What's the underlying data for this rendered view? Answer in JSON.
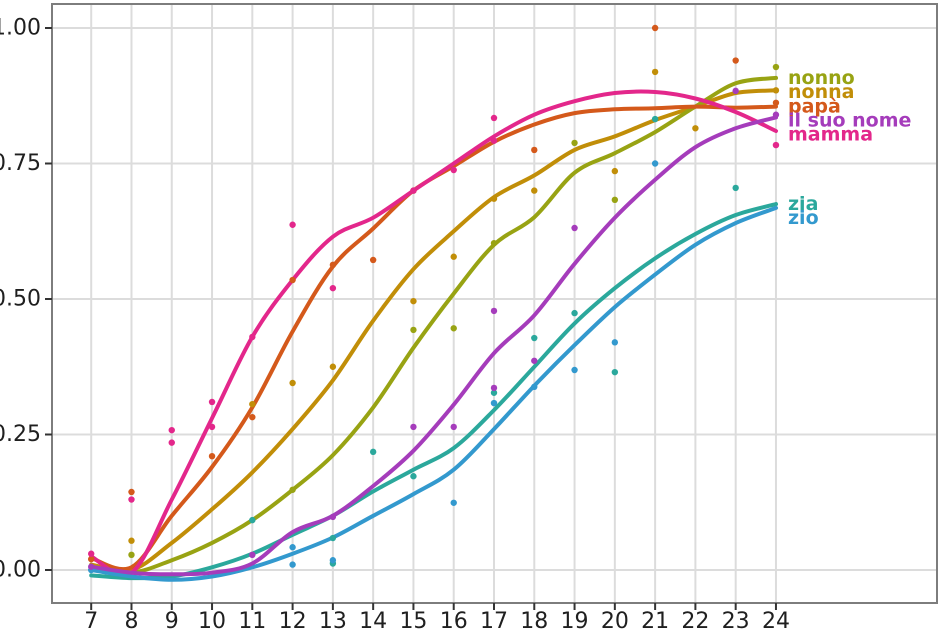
{
  "chart_data": {
    "type": "line+scatter",
    "title": "",
    "xlabel": "",
    "ylabel": "",
    "x_ticks": [
      7,
      8,
      9,
      10,
      11,
      12,
      13,
      14,
      15,
      16,
      17,
      18,
      19,
      20,
      21,
      22,
      23,
      24
    ],
    "y_ticks": [
      {
        "value": 0.0,
        "label": "0.00"
      },
      {
        "value": 0.25,
        "label": "0.25"
      },
      {
        "value": 0.5,
        "label": "0.50"
      },
      {
        "value": 0.75,
        "label": "0.75"
      },
      {
        "value": 1.0,
        "label": "1.00"
      }
    ],
    "xlim": [
      6.0,
      28.0
    ],
    "ylim": [
      -0.06,
      1.045
    ],
    "grid": true,
    "legend_position": "right-direct-labels",
    "ages": [
      7,
      8,
      9,
      10,
      11,
      12,
      13,
      14,
      15,
      16,
      17,
      18,
      19,
      20,
      21,
      22,
      23,
      24
    ],
    "series": [
      {
        "label": "nonna",
        "color": "#C18E08",
        "values": [
          0.01,
          0.0,
          0.05,
          0.112,
          0.18,
          0.26,
          0.35,
          0.46,
          0.555,
          0.625,
          0.688,
          0.728,
          0.775,
          0.8,
          0.83,
          0.855,
          0.88,
          0.885
        ],
        "points": [
          [
            8,
            0.054
          ],
          [
            11,
            0.306
          ],
          [
            12,
            0.345
          ],
          [
            13,
            0.375
          ],
          [
            15,
            0.496
          ],
          [
            16,
            0.578
          ],
          [
            17,
            0.685
          ],
          [
            18,
            0.7
          ],
          [
            20,
            0.736
          ],
          [
            21,
            0.919
          ],
          [
            22,
            0.815
          ],
          [
            24,
            0.885
          ]
        ]
      },
      {
        "label": "nonno",
        "color": "#98A313",
        "values": [
          0.005,
          -0.005,
          0.018,
          0.05,
          0.092,
          0.148,
          0.212,
          0.3,
          0.41,
          0.51,
          0.6,
          0.651,
          0.733,
          0.769,
          0.808,
          0.855,
          0.898,
          0.908
        ],
        "points": [
          [
            8,
            0.028
          ],
          [
            12,
            0.148
          ],
          [
            15,
            0.443
          ],
          [
            16,
            0.446
          ],
          [
            17,
            0.603
          ],
          [
            19,
            0.788
          ],
          [
            20,
            0.683
          ],
          [
            24,
            0.928
          ]
        ]
      },
      {
        "label": "papà",
        "color": "#D4591B",
        "values": [
          0.022,
          0.005,
          0.1,
          0.19,
          0.3,
          0.44,
          0.56,
          0.63,
          0.7,
          0.745,
          0.79,
          0.822,
          0.843,
          0.85,
          0.852,
          0.855,
          0.853,
          0.855
        ],
        "points": [
          [
            7,
            0.02
          ],
          [
            8,
            0.144
          ],
          [
            10,
            0.21
          ],
          [
            11,
            0.282
          ],
          [
            12,
            0.535
          ],
          [
            13,
            0.563
          ],
          [
            14,
            0.572
          ],
          [
            15,
            0.7
          ],
          [
            18,
            0.775
          ],
          [
            21,
            1.0
          ],
          [
            23,
            0.94
          ],
          [
            24,
            0.862
          ]
        ]
      },
      {
        "label": "mamma",
        "color": "#E3278B",
        "values": [
          0.025,
          -0.005,
          0.13,
          0.28,
          0.43,
          0.535,
          0.615,
          0.65,
          0.7,
          0.75,
          0.8,
          0.84,
          0.865,
          0.88,
          0.882,
          0.87,
          0.845,
          0.81
        ],
        "points": [
          [
            7,
            0.03
          ],
          [
            8,
            0.13
          ],
          [
            9,
            0.258
          ],
          [
            9,
            0.235
          ],
          [
            10,
            0.264
          ],
          [
            10,
            0.31
          ],
          [
            11,
            0.43
          ],
          [
            12,
            0.637
          ],
          [
            13,
            0.52
          ],
          [
            15,
            0.7
          ],
          [
            16,
            0.738
          ],
          [
            17,
            0.792
          ],
          [
            17,
            0.834
          ],
          [
            24,
            0.784
          ]
        ]
      },
      {
        "label": "zia",
        "color": "#2BA89C",
        "values": [
          -0.01,
          -0.015,
          -0.012,
          0.005,
          0.03,
          0.065,
          0.1,
          0.145,
          0.185,
          0.225,
          0.295,
          0.375,
          0.455,
          0.52,
          0.575,
          0.62,
          0.655,
          0.675
        ],
        "points": [
          [
            11,
            0.092
          ],
          [
            13,
            0.059
          ],
          [
            13,
            0.012
          ],
          [
            14,
            0.218
          ],
          [
            15,
            0.173
          ],
          [
            17,
            0.327
          ],
          [
            18,
            0.428
          ],
          [
            19,
            0.474
          ],
          [
            20,
            0.365
          ],
          [
            21,
            0.832
          ],
          [
            23,
            0.705
          ]
        ]
      },
      {
        "label": "zio",
        "color": "#3399CE",
        "values": [
          0.0,
          -0.012,
          -0.018,
          -0.012,
          0.005,
          0.03,
          0.06,
          0.1,
          0.14,
          0.185,
          0.26,
          0.34,
          0.415,
          0.485,
          0.545,
          0.6,
          0.64,
          0.668
        ],
        "points": [
          [
            7,
            0.0
          ],
          [
            12,
            0.042
          ],
          [
            12,
            0.01
          ],
          [
            13,
            0.018
          ],
          [
            16,
            0.124
          ],
          [
            17,
            0.308
          ],
          [
            18,
            0.338
          ],
          [
            19,
            0.369
          ],
          [
            20,
            0.42
          ],
          [
            21,
            0.75
          ]
        ]
      },
      {
        "label": "il suo nome",
        "color": "#A53CBB",
        "values": [
          0.006,
          -0.005,
          -0.008,
          -0.005,
          0.012,
          0.07,
          0.1,
          0.155,
          0.22,
          0.305,
          0.4,
          0.47,
          0.565,
          0.65,
          0.72,
          0.78,
          0.815,
          0.835
        ],
        "points": [
          [
            7,
            0.006
          ],
          [
            11,
            0.028
          ],
          [
            13,
            0.098
          ],
          [
            15,
            0.264
          ],
          [
            16,
            0.264
          ],
          [
            17,
            0.336
          ],
          [
            17,
            0.478
          ],
          [
            18,
            0.386
          ],
          [
            19,
            0.631
          ],
          [
            23,
            0.884
          ],
          [
            24,
            0.84
          ]
        ]
      }
    ]
  },
  "colors": {
    "background": "#ffffff",
    "gridline": "#dcdcdc",
    "panel_border": "#7d7d7d",
    "tick_mark": "#333333",
    "axis_text": "#1f1f1f"
  }
}
